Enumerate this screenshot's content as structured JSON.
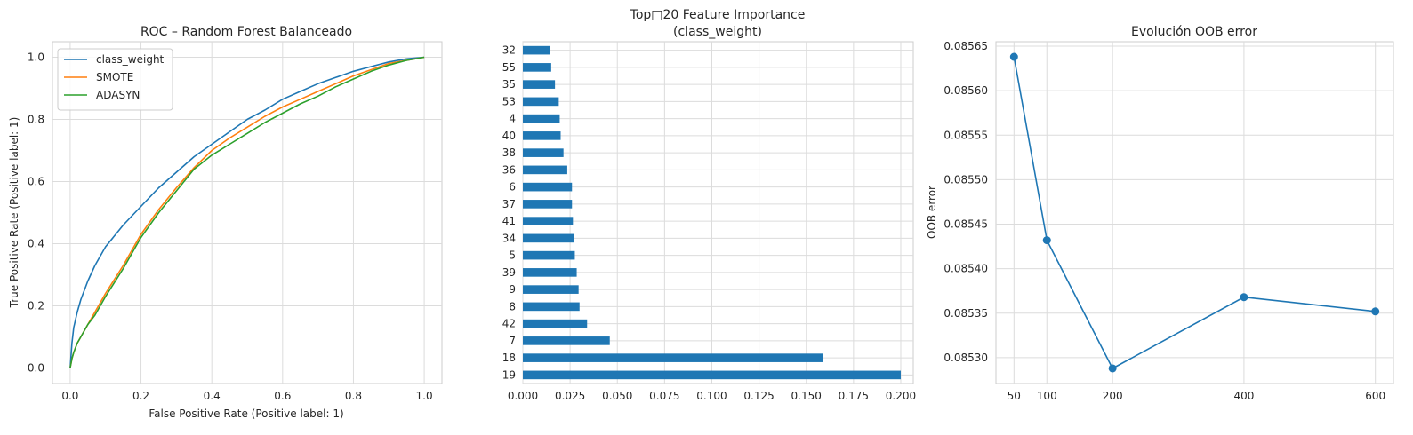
{
  "chart_data": [
    {
      "type": "line",
      "title": "ROC – Random Forest Balanceado",
      "xlabel": "False Positive Rate (Positive label: 1)",
      "ylabel": "True Positive Rate (Positive label: 1)",
      "xlim": [
        -0.05,
        1.05
      ],
      "ylim": [
        -0.05,
        1.05
      ],
      "xticks": [
        "0.0",
        "0.2",
        "0.4",
        "0.6",
        "0.8",
        "1.0"
      ],
      "yticks": [
        "0.0",
        "0.2",
        "0.4",
        "0.6",
        "0.8",
        "1.0"
      ],
      "grid": true,
      "legend": "upper-left",
      "series": [
        {
          "name": "class_weight",
          "color": "#1f77b4",
          "x": [
            0,
            0.005,
            0.01,
            0.02,
            0.03,
            0.05,
            0.07,
            0.1,
            0.15,
            0.2,
            0.25,
            0.3,
            0.35,
            0.4,
            0.45,
            0.5,
            0.55,
            0.6,
            0.65,
            0.7,
            0.75,
            0.8,
            0.85,
            0.9,
            0.95,
            1.0
          ],
          "y": [
            0,
            0.08,
            0.13,
            0.18,
            0.22,
            0.28,
            0.33,
            0.39,
            0.46,
            0.52,
            0.58,
            0.63,
            0.68,
            0.72,
            0.76,
            0.8,
            0.83,
            0.865,
            0.89,
            0.915,
            0.935,
            0.955,
            0.97,
            0.985,
            0.995,
            1.0
          ]
        },
        {
          "name": "SMOTE",
          "color": "#ff7f0e",
          "x": [
            0,
            0.005,
            0.01,
            0.02,
            0.03,
            0.05,
            0.07,
            0.1,
            0.15,
            0.2,
            0.25,
            0.3,
            0.35,
            0.4,
            0.45,
            0.5,
            0.55,
            0.6,
            0.65,
            0.7,
            0.75,
            0.8,
            0.85,
            0.9,
            0.95,
            1.0
          ],
          "y": [
            0,
            0.03,
            0.05,
            0.08,
            0.1,
            0.14,
            0.18,
            0.24,
            0.33,
            0.43,
            0.51,
            0.58,
            0.645,
            0.7,
            0.74,
            0.775,
            0.81,
            0.84,
            0.865,
            0.89,
            0.915,
            0.94,
            0.96,
            0.98,
            0.99,
            1.0
          ]
        },
        {
          "name": "ADASYN",
          "color": "#2ca02c",
          "x": [
            0,
            0.005,
            0.01,
            0.02,
            0.03,
            0.05,
            0.07,
            0.1,
            0.15,
            0.2,
            0.25,
            0.3,
            0.35,
            0.4,
            0.45,
            0.5,
            0.55,
            0.6,
            0.65,
            0.7,
            0.75,
            0.8,
            0.85,
            0.9,
            0.95,
            1.0
          ],
          "y": [
            0,
            0.03,
            0.05,
            0.08,
            0.1,
            0.14,
            0.17,
            0.23,
            0.32,
            0.42,
            0.5,
            0.57,
            0.64,
            0.685,
            0.72,
            0.755,
            0.79,
            0.82,
            0.85,
            0.875,
            0.905,
            0.93,
            0.955,
            0.975,
            0.99,
            1.0
          ]
        }
      ]
    },
    {
      "type": "bar",
      "orientation": "horizontal",
      "title": "Top 20 Feature Importance\n(class_weight)",
      "title_lines": [
        "Top□20 Feature Importance",
        "(class_weight)"
      ],
      "color": "#1f77b4",
      "categories": [
        "32",
        "55",
        "35",
        "53",
        "4",
        "40",
        "38",
        "36",
        "6",
        "37",
        "41",
        "34",
        "5",
        "39",
        "9",
        "8",
        "42",
        "7",
        "18",
        "19"
      ],
      "values": [
        0.0145,
        0.015,
        0.017,
        0.019,
        0.0195,
        0.02,
        0.0215,
        0.0235,
        0.026,
        0.026,
        0.0265,
        0.027,
        0.0275,
        0.0285,
        0.0295,
        0.03,
        0.034,
        0.046,
        0.159,
        0.2
      ],
      "xlim": [
        0,
        0.2066
      ],
      "xticks": [
        "0.000",
        "0.025",
        "0.050",
        "0.075",
        "0.100",
        "0.125",
        "0.150",
        "0.175",
        "0.200"
      ],
      "grid": true
    },
    {
      "type": "line",
      "title": "Evolución OOB error",
      "xlabel": "",
      "ylabel": "OOB error",
      "markers": true,
      "color": "#1f77b4",
      "x": [
        50,
        100,
        200,
        400,
        600
      ],
      "y": [
        0.085638,
        0.085432,
        0.085288,
        0.085368,
        0.085352
      ],
      "xlim": [
        22.5,
        627.5
      ],
      "ylim": [
        0.085271,
        0.085655
      ],
      "xticks": [
        "50",
        "100",
        "200",
        "400",
        "600"
      ],
      "yticks": [
        "0.08530",
        "0.08535",
        "0.08540",
        "0.08545",
        "0.08550",
        "0.08555",
        "0.08560",
        "0.08565"
      ],
      "grid": true
    }
  ]
}
